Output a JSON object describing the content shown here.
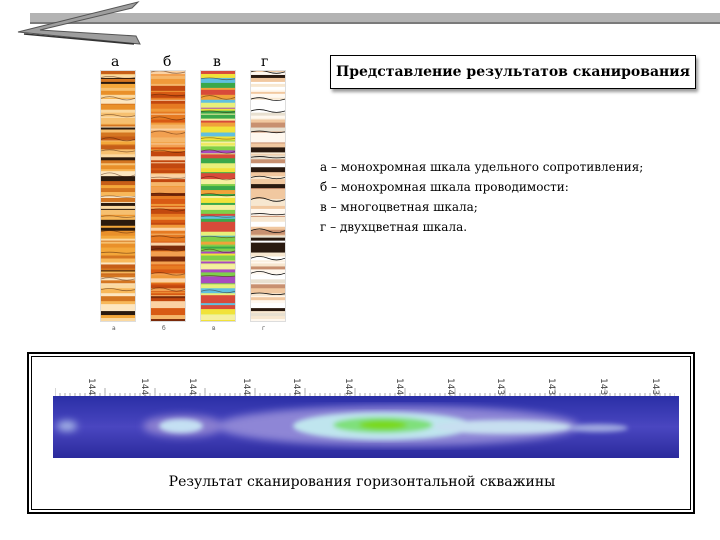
{
  "title": "Представление результатов сканирования",
  "columns": [
    {
      "letter": "а",
      "foot": "а"
    },
    {
      "letter": "б",
      "foot": "б"
    },
    {
      "letter": "в",
      "foot": "в"
    },
    {
      "letter": "г",
      "foot": "г"
    }
  ],
  "legend": [
    "а – монохромная шкала удельного сопротивления;",
    "б – монохромная шкала проводимости:",
    "в – многоцветная шкала;",
    "г – двухцветная шкала."
  ],
  "ruler": [
    "1447",
    "1446",
    "1445",
    "1444",
    "1443",
    "1442",
    "1441",
    "1440",
    "1439",
    "1438",
    "1437",
    "1436"
  ],
  "caption": "Результат сканирования горизонтальной скважины"
}
